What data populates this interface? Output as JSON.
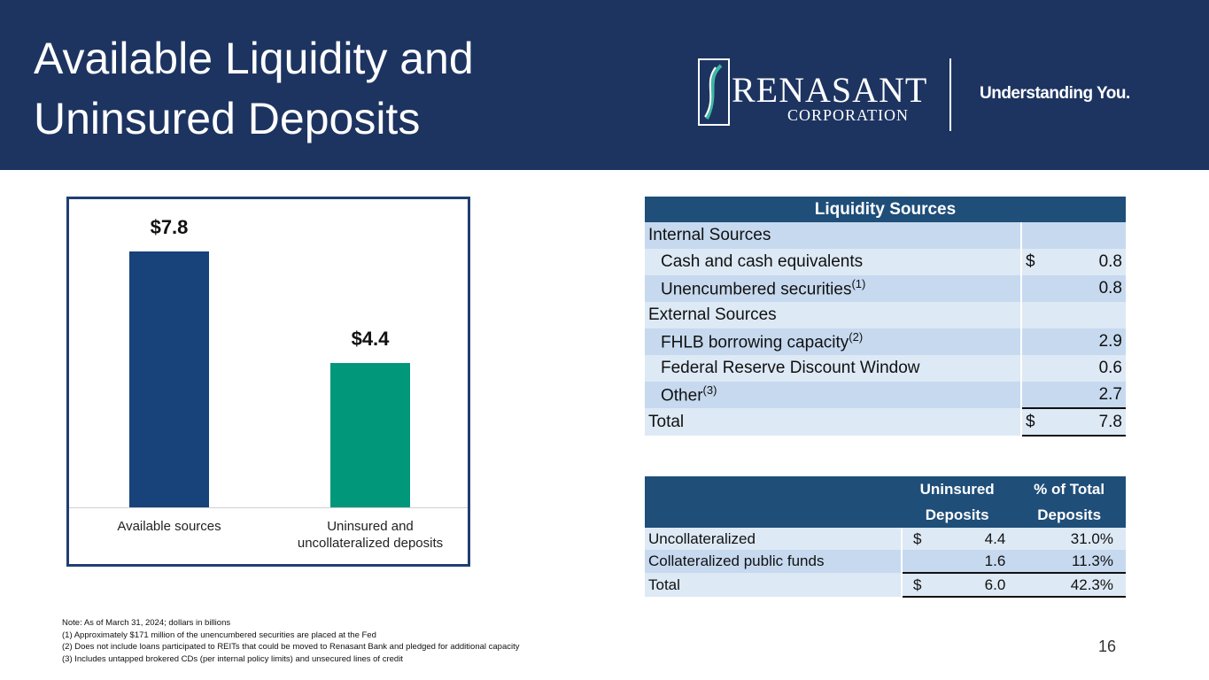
{
  "header": {
    "title": "Available Liquidity and Uninsured Deposits",
    "logo_name": "RENASANT",
    "logo_sub": "CORPORATION",
    "tagline": "Understanding You."
  },
  "chart_data": {
    "type": "bar",
    "categories": [
      "Available sources",
      "Uninsured and uncollateralized deposits"
    ],
    "values": [
      7.8,
      4.4
    ],
    "value_labels": [
      "$7.8",
      "$4.4"
    ],
    "colors": [
      "#17427a",
      "#00977a"
    ]
  },
  "liquidity_table": {
    "title": "Liquidity Sources",
    "rows": [
      {
        "label": "Internal Sources",
        "indent": false
      },
      {
        "label": "Cash and cash equivalents",
        "indent": true,
        "currency": "$",
        "value": "0.8"
      },
      {
        "label": "Unencumbered securities",
        "note": "(1)",
        "indent": true,
        "value": "0.8"
      },
      {
        "label": "External Sources",
        "indent": false
      },
      {
        "label": "FHLB borrowing capacity",
        "note": "(2)",
        "indent": true,
        "value": "2.9"
      },
      {
        "label": "Federal Reserve Discount Window",
        "indent": true,
        "value": "0.6"
      },
      {
        "label": "Other",
        "note": "(3)",
        "indent": true,
        "value": "2.7"
      },
      {
        "label": "Total",
        "indent": false,
        "currency": "$",
        "value": "7.8",
        "total": true
      }
    ]
  },
  "deposits_table": {
    "columns": [
      "Uninsured Deposits",
      "% of Total Deposits"
    ],
    "rows": [
      {
        "label": "Uncollateralized",
        "currency": "$",
        "uninsured": "4.4",
        "pct": "31.0%"
      },
      {
        "label": "Collateralized public funds",
        "uninsured": "1.6",
        "pct": "11.3%"
      },
      {
        "label": "Total",
        "currency": "$",
        "uninsured": "6.0",
        "pct": "42.3%",
        "total": true
      }
    ]
  },
  "footnotes": [
    "Note:  As of March 31, 2024; dollars in billions",
    "(1) Approximately $171 million of the unencumbered securities are placed at the Fed",
    "(2) Does not include loans participated to REITs that could be moved to Renasant Bank and pledged for additional capacity",
    "(3) Includes untapped brokered CDs (per internal policy limits) and unsecured lines of credit"
  ],
  "page_number": "16"
}
